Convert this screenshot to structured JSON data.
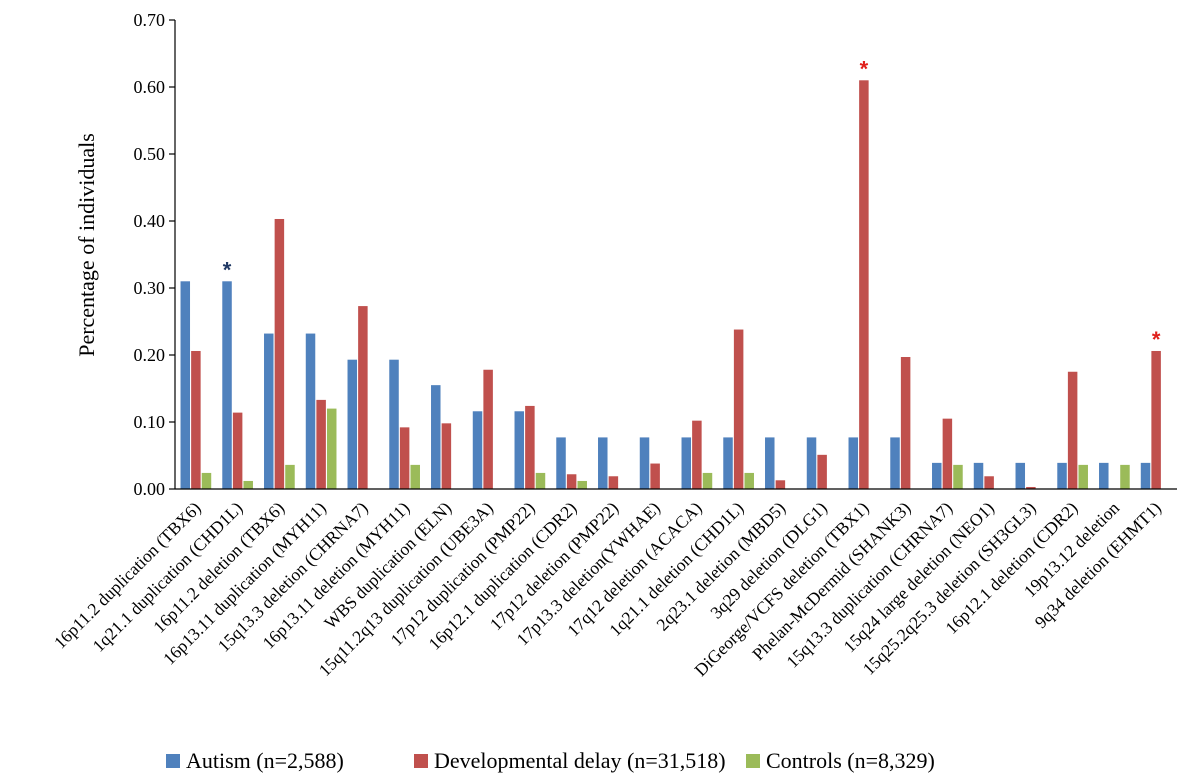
{
  "chart_data": {
    "type": "bar",
    "title": "",
    "xlabel": "",
    "ylabel": "Percentage of individuals",
    "ylim": [
      0,
      0.7
    ],
    "yticks": [
      "0.00",
      "0.10",
      "0.20",
      "0.30",
      "0.40",
      "0.50",
      "0.60",
      "0.70"
    ],
    "grid": false,
    "legend_position": "bottom",
    "categories": [
      "16p11.2 duplication (TBX6)",
      "1q21.1 duplication (CHD1L)",
      "16p11.2 deletion (TBX6)",
      "16p13.11 duplication (MYH11)",
      "15q13.3 deletion (CHRNA7)",
      "16p13.11 deletion (MYH11)",
      "WBS duplication (ELN)",
      "15q11.2q13 duplication (UBE3A)",
      "17p12 duplication (PMP22)",
      "16p12.1 duplication (CDR2)",
      "17p12 deletion (PMP22)",
      "17p13.3 deletion(YWHAE)",
      "17q12 deletion (ACACA)",
      "1q21.1 deletion (CHD1L)",
      "2q23.1 deletion (MBD5)",
      "3q29 deletion (DLG1)",
      "DiGeorge/VCFS deletion (TBX1)",
      "Phelan-McDermid (SHANK3)",
      "15q13.3 duplication (CHRNA7)",
      "15q24 large deletion (NEO1)",
      "15q25.2q25.3 deletion (SH3GL3)",
      "16p12.1 deletion (CDR2)",
      "19p13.12 deletion",
      "9q34 deletion (EHMT1)"
    ],
    "series": [
      {
        "name": "Autism (n=2,588)",
        "color": "#4f81bd",
        "values": [
          0.31,
          0.31,
          0.232,
          0.232,
          0.193,
          0.193,
          0.155,
          0.116,
          0.116,
          0.077,
          0.077,
          0.077,
          0.077,
          0.077,
          0.077,
          0.077,
          0.077,
          0.077,
          0.039,
          0.039,
          0.039,
          0.039,
          0.039,
          0.039
        ]
      },
      {
        "name": "Developmental delay (n=31,518)",
        "color": "#c0504d",
        "values": [
          0.206,
          0.114,
          0.403,
          0.133,
          0.273,
          0.092,
          0.098,
          0.178,
          0.124,
          0.022,
          0.019,
          0.038,
          0.102,
          0.238,
          0.013,
          0.051,
          0.61,
          0.197,
          0.105,
          0.019,
          0.003,
          0.175,
          0.0,
          0.206
        ]
      },
      {
        "name": "Controls (n=8,329)",
        "color": "#9bbb59",
        "values": [
          0.024,
          0.012,
          0.036,
          0.12,
          0.0,
          0.036,
          0.0,
          0.0,
          0.024,
          0.012,
          0.0,
          0.0,
          0.024,
          0.024,
          0.0,
          0.0,
          0.0,
          0.0,
          0.036,
          0.0,
          0.0,
          0.036,
          0.036,
          0.0
        ]
      }
    ],
    "annotations": [
      {
        "text": "*",
        "category_index": 1,
        "series_index": 0,
        "color": "#1f3864"
      },
      {
        "text": "*",
        "category_index": 16,
        "series_index": 1,
        "color": "#e0201b"
      },
      {
        "text": "*",
        "category_index": 23,
        "series_index": 1,
        "color": "#e0201b"
      }
    ]
  }
}
